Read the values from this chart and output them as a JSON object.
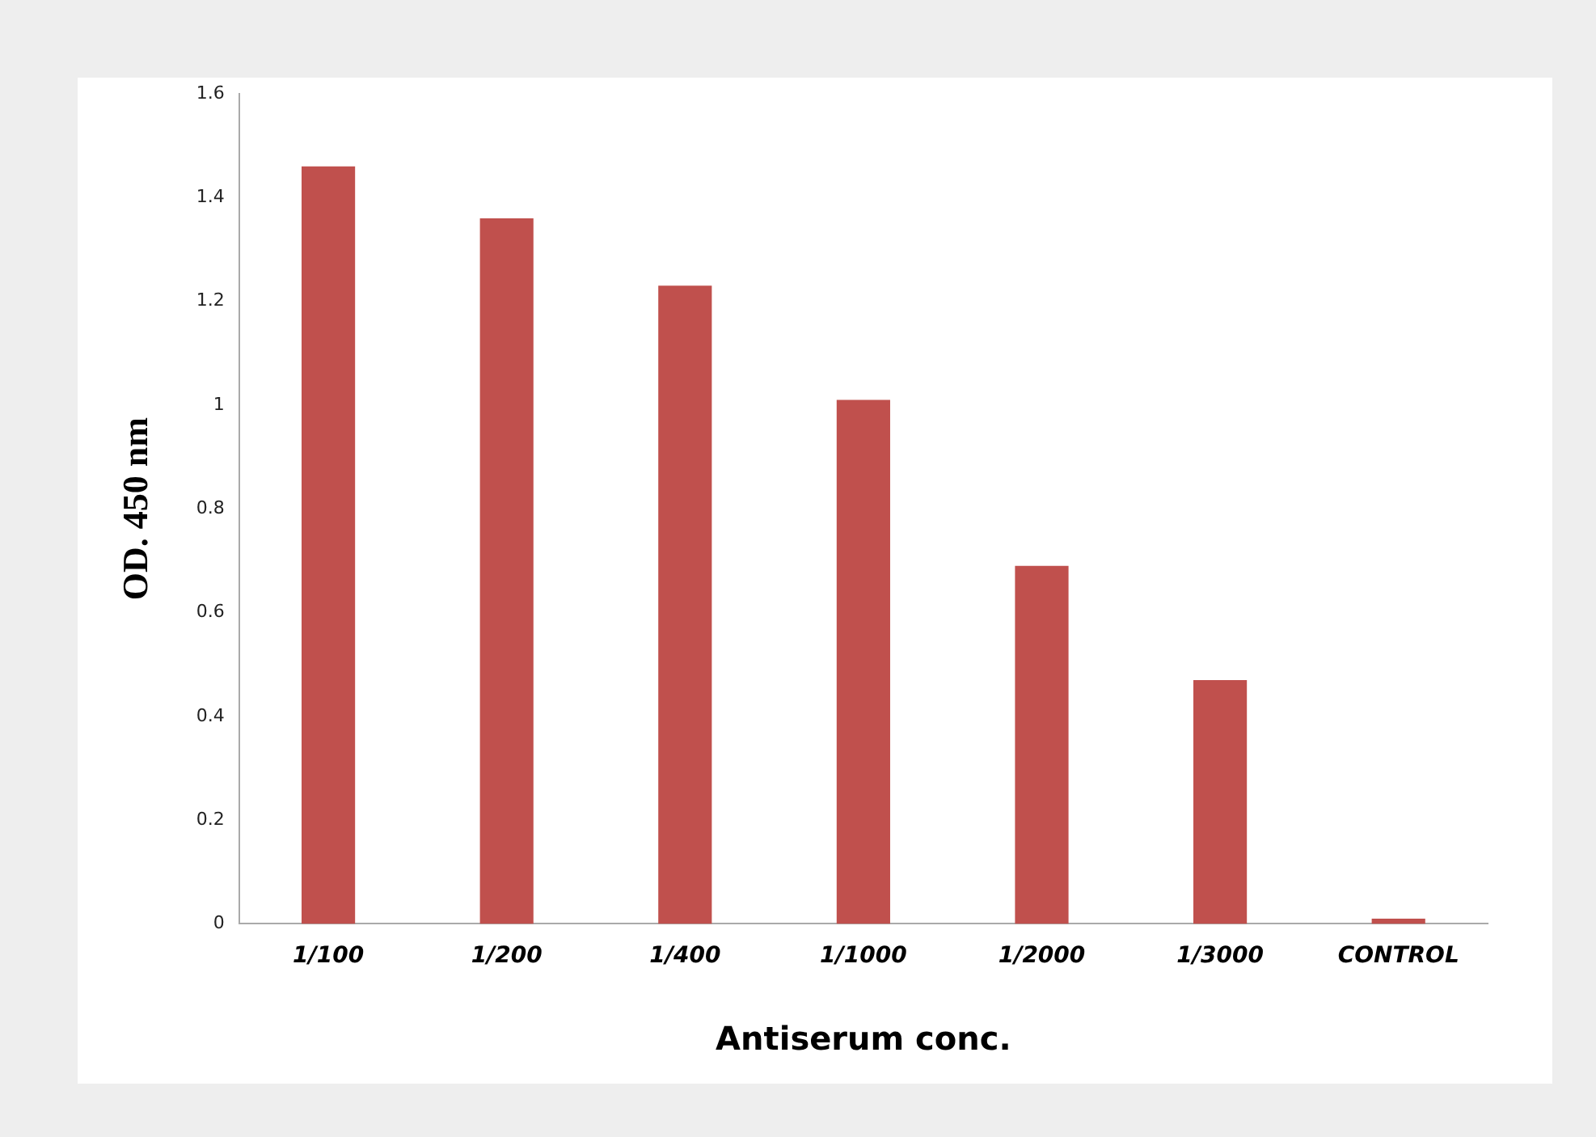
{
  "chart_data": {
    "type": "bar",
    "xlabel": "Antiserum conc.",
    "ylabel": "OD. 450 nm",
    "categories": [
      "1/100",
      "1/200",
      "1/400",
      "1/1000",
      "1/2000",
      "1/3000",
      "CONTROL"
    ],
    "values": [
      1.46,
      1.36,
      1.23,
      1.01,
      0.69,
      0.47,
      0.01
    ],
    "color": "#c0504d",
    "ylim": [
      0,
      1.6
    ],
    "yticks": [
      0,
      0.2,
      0.4,
      0.6,
      0.8,
      1,
      1.2,
      1.4,
      1.6
    ],
    "grid": false,
    "legend": false
  }
}
